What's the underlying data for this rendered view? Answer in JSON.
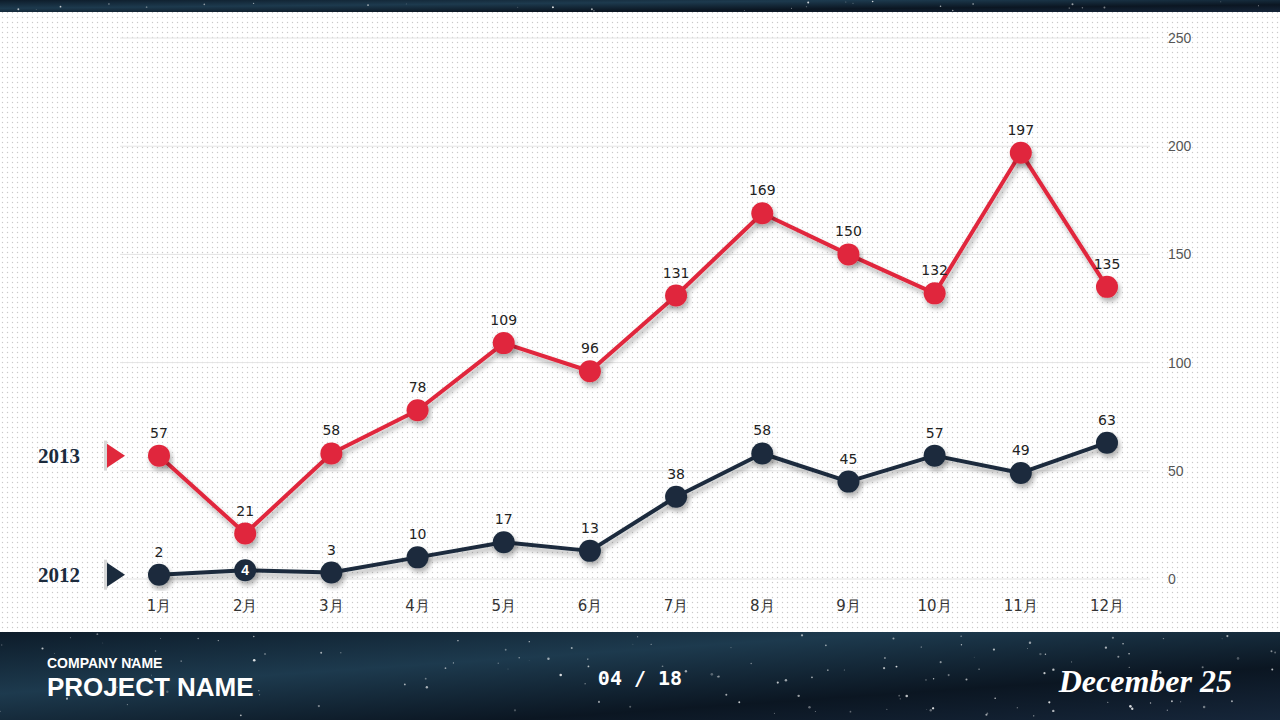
{
  "chart_data": {
    "type": "line",
    "categories": [
      "1月",
      "2月",
      "3月",
      "4月",
      "5月",
      "6月",
      "7月",
      "8月",
      "9月",
      "10月",
      "11月",
      "12月"
    ],
    "series": [
      {
        "name": "2013",
        "color": "#e0283c",
        "marker": "circle",
        "values": [
          57,
          21,
          58,
          78,
          109,
          96,
          131,
          169,
          150,
          132,
          197,
          135
        ]
      },
      {
        "name": "2012",
        "color": "#1b2b3d",
        "marker": "circle",
        "values": [
          2,
          4,
          3,
          10,
          17,
          13,
          38,
          58,
          45,
          57,
          49,
          63
        ]
      }
    ],
    "ylim": [
      0,
      250
    ],
    "yticks": [
      0,
      50,
      100,
      150,
      200,
      250
    ],
    "grid": true,
    "data_labels": true,
    "legend": "left"
  },
  "footer": {
    "company": "COMPANY NAME",
    "project": "PROJECT NAME",
    "page": "04 / 18",
    "date": "December 25"
  }
}
